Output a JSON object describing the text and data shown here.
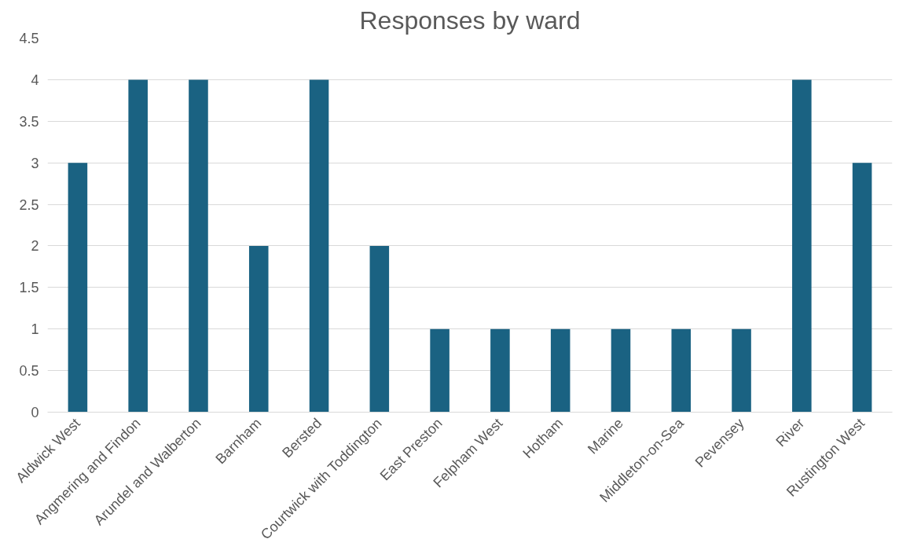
{
  "chart_data": {
    "type": "bar",
    "title": "Responses by ward",
    "categories": [
      "Aldwick West",
      "Angmering and Findon",
      "Arundel and Walberton",
      "Barnham",
      "Bersted",
      "Courtwick with Toddington",
      "East Preston",
      "Felpham West",
      "Hotham",
      "Marine",
      "Middleton-on-Sea",
      "Pevensey",
      "River",
      "Rustington West"
    ],
    "values": [
      3,
      4,
      4,
      2,
      4,
      2,
      1,
      1,
      1,
      1,
      1,
      1,
      4,
      3
    ],
    "color": "#1a6282",
    "ylim": [
      0,
      4.5
    ],
    "yticks": [
      0,
      0.5,
      1,
      1.5,
      2,
      2.5,
      3,
      3.5,
      4,
      4.5
    ],
    "grid": "y"
  }
}
